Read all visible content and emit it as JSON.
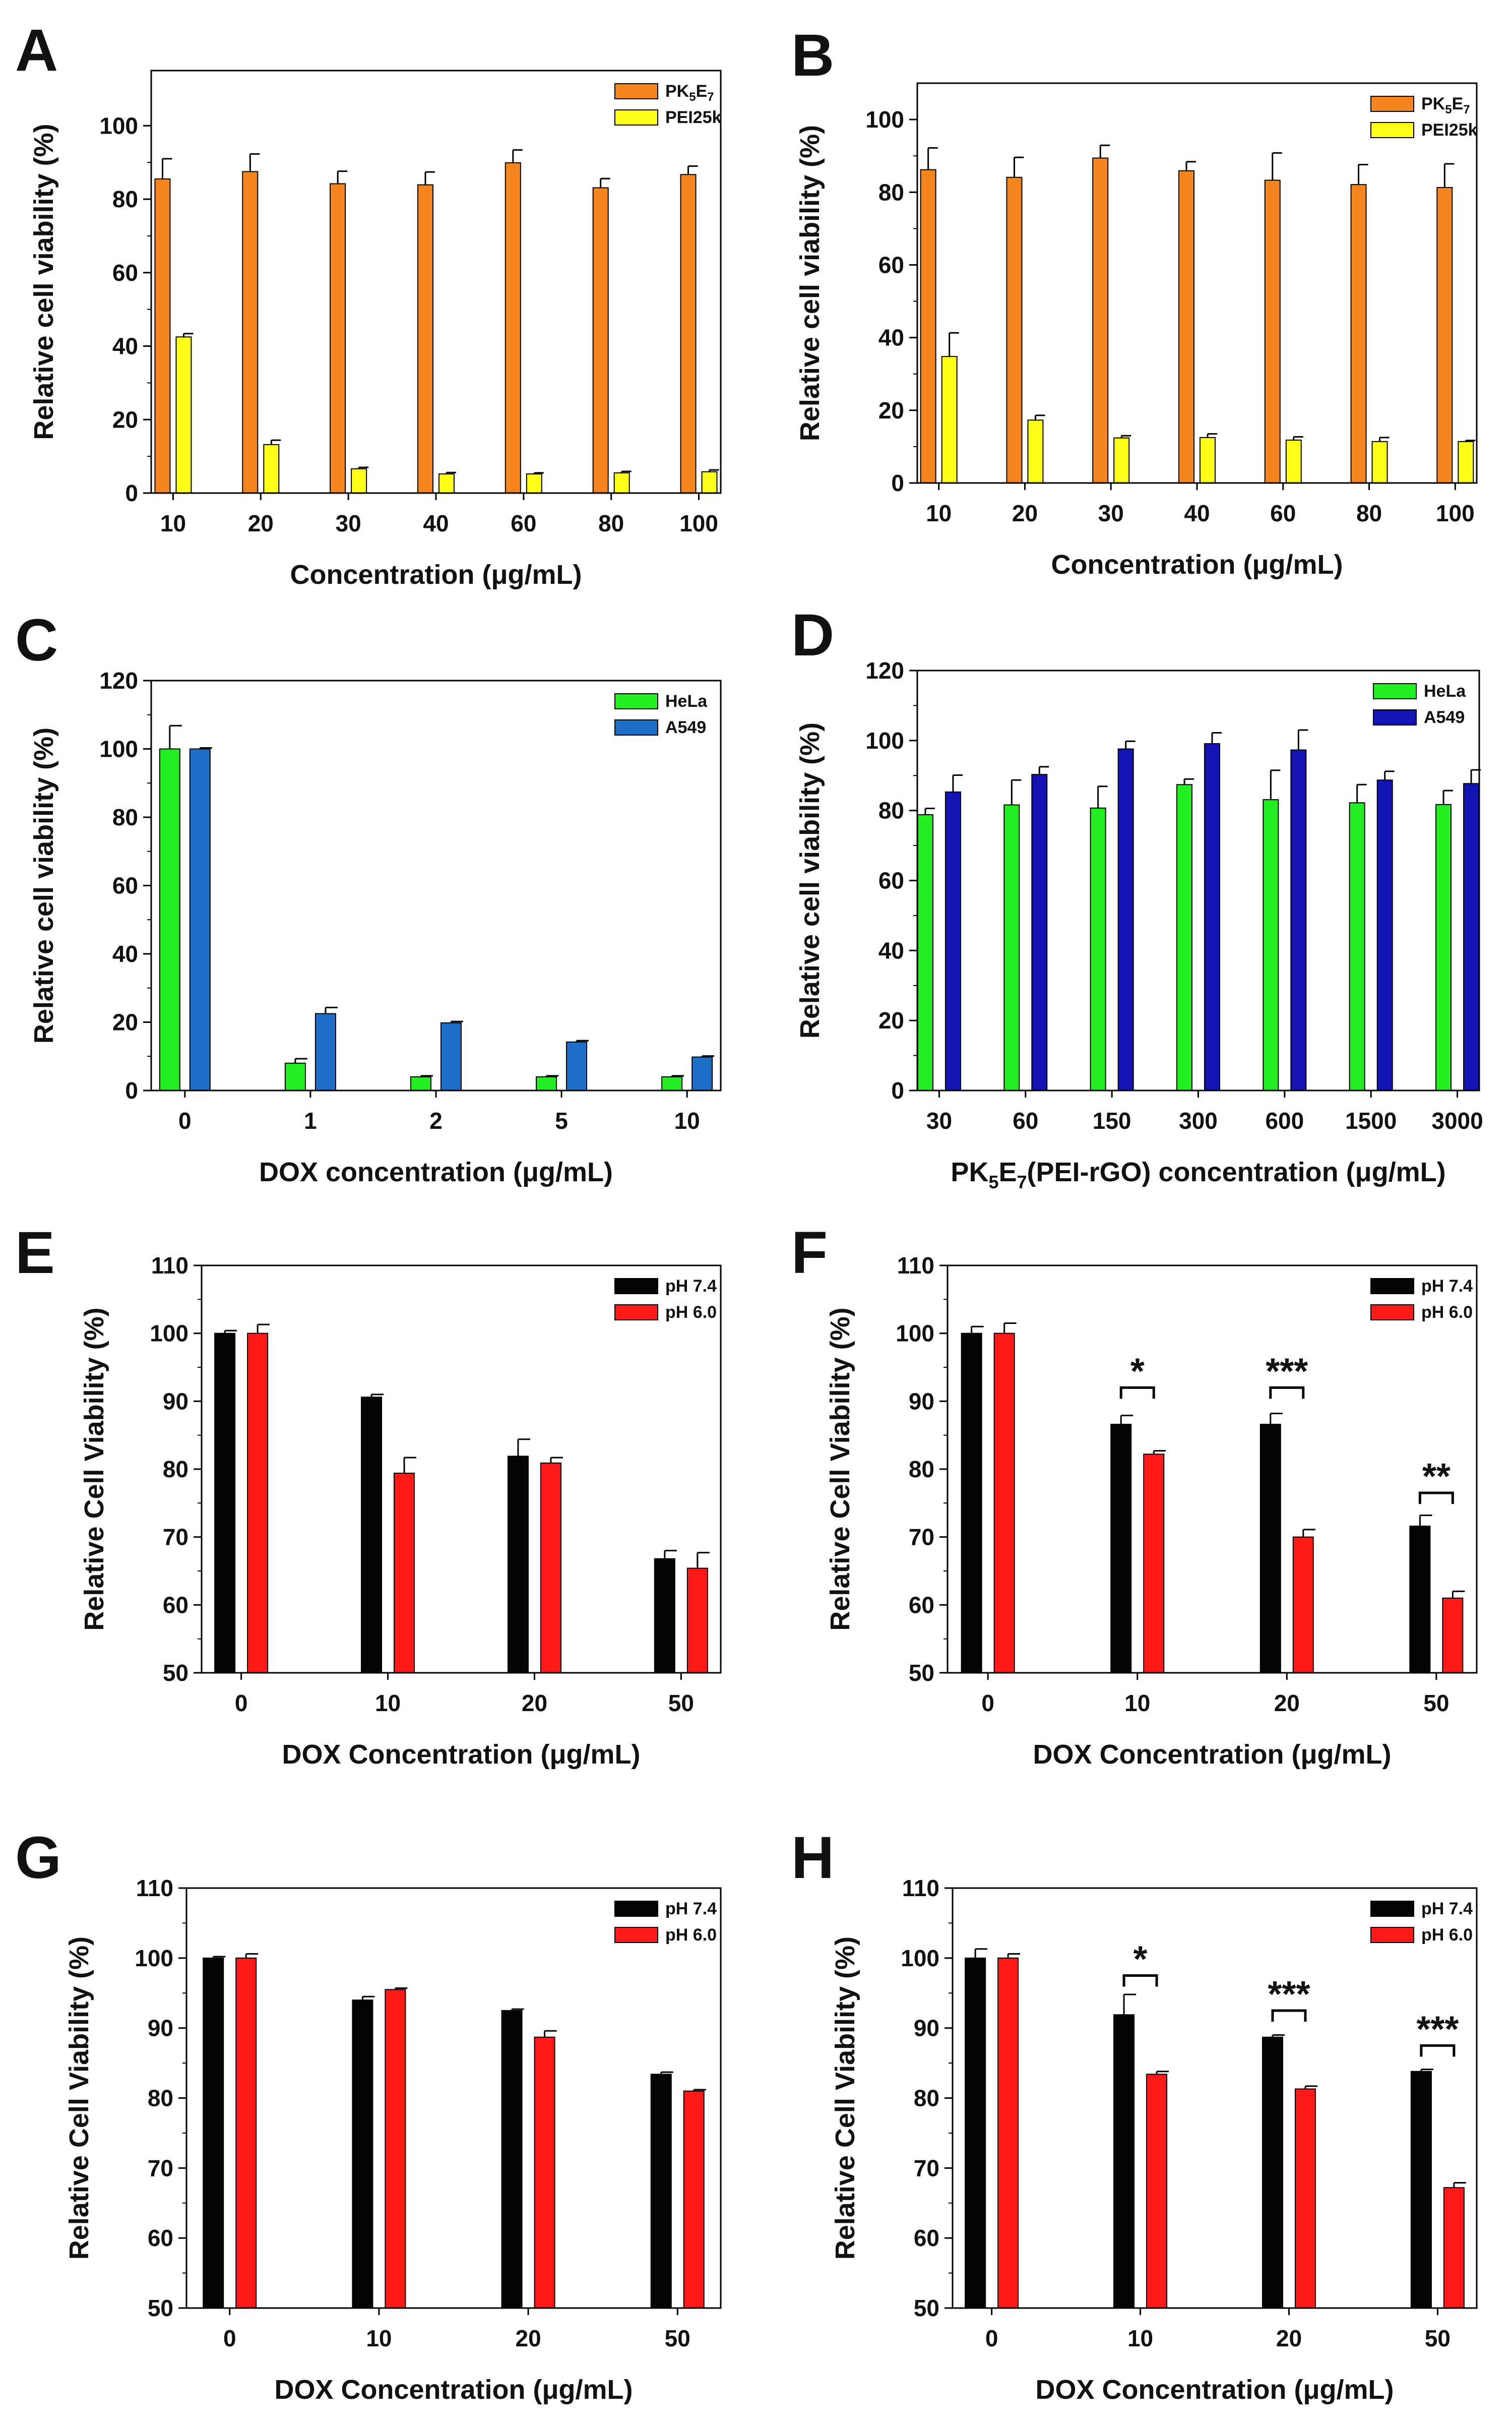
{
  "chart_data": [
    {
      "panel": "A",
      "type": "bar",
      "title": "",
      "xlabel": "Concentration (μg/mL)",
      "ylabel": "Relative cell viability (%)",
      "ylim": [
        0,
        115
      ],
      "yticks": [
        0,
        20,
        40,
        60,
        80,
        100
      ],
      "categories": [
        "10",
        "20",
        "30",
        "40",
        "60",
        "80",
        "100"
      ],
      "legend_position": "top-right",
      "series": [
        {
          "name": "PK5E7",
          "label_main": "PK",
          "label_sub1": "5",
          "label_mid": "E",
          "label_sub2": "7",
          "color": "#f5861f",
          "values": [
            85.5,
            87.5,
            84.2,
            83.9,
            89.9,
            83.1,
            86.7
          ],
          "errors": [
            5.5,
            4.8,
            3.4,
            3.5,
            3.5,
            2.5,
            2.3
          ]
        },
        {
          "name": "PEI25k",
          "color": "#ffff1a",
          "values": [
            42.5,
            13.2,
            6.6,
            5.2,
            5.2,
            5.5,
            5.8
          ],
          "errors": [
            0.9,
            1.2,
            0.4,
            0.4,
            0.3,
            0.4,
            0.5
          ]
        }
      ]
    },
    {
      "panel": "B",
      "type": "bar",
      "title": "",
      "xlabel": "Concentration (μg/mL)",
      "ylabel": "Relative cell viability (%)",
      "ylim": [
        0,
        110
      ],
      "yticks": [
        0,
        20,
        40,
        60,
        80,
        100
      ],
      "categories": [
        "10",
        "20",
        "30",
        "40",
        "60",
        "80",
        "100"
      ],
      "legend_position": "top-right",
      "series": [
        {
          "name": "PK5E7",
          "label_main": "PK",
          "label_sub1": "5",
          "label_mid": "E",
          "label_sub2": "7",
          "color": "#f5861f",
          "values": [
            86.2,
            84.1,
            89.4,
            85.9,
            83.3,
            82.1,
            81.3
          ],
          "errors": [
            6.0,
            5.5,
            3.5,
            2.5,
            7.5,
            5.5,
            6.5
          ]
        },
        {
          "name": "PEI25k",
          "color": "#ffff1a",
          "values": [
            34.8,
            17.3,
            12.4,
            12.5,
            11.8,
            11.4,
            11.4
          ],
          "errors": [
            6.5,
            1.3,
            0.6,
            1.0,
            0.9,
            1.1,
            0.3
          ]
        }
      ]
    },
    {
      "panel": "C",
      "type": "bar",
      "title": "",
      "xlabel": "DOX concentration (μg/mL)",
      "ylabel": "Relative cell viability (%)",
      "ylim": [
        0,
        120
      ],
      "yticks": [
        0,
        20,
        40,
        60,
        80,
        100,
        120
      ],
      "categories": [
        "0",
        "1",
        "2",
        "5",
        "10"
      ],
      "legend_position": "top-right",
      "series": [
        {
          "name": "HeLa",
          "color": "#22ee22",
          "values": [
            100.0,
            8.0,
            4.0,
            4.0,
            4.0
          ],
          "errors": [
            6.8,
            1.3,
            0.3,
            0.3,
            0.3
          ]
        },
        {
          "name": "A549",
          "color": "#1f6fc9",
          "values": [
            100.0,
            22.5,
            19.8,
            14.2,
            9.8
          ],
          "errors": [
            0.3,
            1.8,
            0.4,
            0.4,
            0.3
          ]
        }
      ]
    },
    {
      "panel": "D",
      "type": "bar",
      "title": "",
      "xlabel": "PK5E7(PEI-rGO) concentration (μg/mL)",
      "xlabel_parts": {
        "a": "PK",
        "b": "5",
        "c": "E",
        "d": "7",
        "e": "(PEI-rGO) concentration (μg/mL)"
      },
      "ylabel": "Relative cell viability (%)",
      "ylim": [
        0,
        120
      ],
      "yticks": [
        0,
        20,
        40,
        60,
        80,
        100,
        120
      ],
      "categories": [
        "30",
        "60",
        "150",
        "300",
        "600",
        "1500",
        "3000"
      ],
      "legend_position": "top-right",
      "series": [
        {
          "name": "HeLa",
          "color": "#22ee22",
          "values": [
            78.8,
            81.6,
            80.7,
            87.4,
            83.1,
            82.2,
            81.7
          ],
          "errors": [
            1.8,
            7.1,
            6.2,
            1.6,
            8.4,
            5.2,
            4.0
          ]
        },
        {
          "name": "A549",
          "color": "#1414b4",
          "values": [
            85.3,
            90.3,
            97.6,
            99.1,
            97.3,
            88.7,
            87.7
          ],
          "errors": [
            4.8,
            2.2,
            2.2,
            3.1,
            5.7,
            2.5,
            3.9
          ]
        }
      ]
    },
    {
      "panel": "E",
      "type": "bar",
      "title": "",
      "xlabel": "DOX Concentration (μg/mL)",
      "ylabel": "Relative Cell Viability (%)",
      "ylim": [
        50,
        110
      ],
      "yticks": [
        50,
        60,
        70,
        80,
        90,
        100,
        110
      ],
      "categories": [
        "0",
        "10",
        "20",
        "50"
      ],
      "legend_position": "top-right",
      "series": [
        {
          "name": "pH 7.4",
          "color": "#050505",
          "values": [
            100.0,
            90.6,
            81.9,
            66.8
          ],
          "errors": [
            0.4,
            0.4,
            2.5,
            1.2
          ]
        },
        {
          "name": "pH 6.0",
          "color": "#ff1a1a",
          "values": [
            100.0,
            79.4,
            80.9,
            65.4
          ],
          "errors": [
            1.3,
            2.3,
            0.8,
            2.3
          ]
        }
      ],
      "annotations": []
    },
    {
      "panel": "F",
      "type": "bar",
      "title": "",
      "xlabel": "DOX Concentration (μg/mL)",
      "ylabel": "Relative Cell Viability (%)",
      "ylim": [
        50,
        110
      ],
      "yticks": [
        50,
        60,
        70,
        80,
        90,
        100,
        110
      ],
      "categories": [
        "0",
        "10",
        "20",
        "50"
      ],
      "legend_position": "top-right",
      "series": [
        {
          "name": "pH 7.4",
          "color": "#050505",
          "values": [
            100.0,
            86.6,
            86.6,
            71.6
          ],
          "errors": [
            1.0,
            1.3,
            1.6,
            1.6
          ]
        },
        {
          "name": "pH 6.0",
          "color": "#ff1a1a",
          "values": [
            100.0,
            82.2,
            70.0,
            61.0
          ],
          "errors": [
            1.5,
            0.5,
            1.1,
            1.0
          ]
        }
      ],
      "annotations": [
        {
          "category": 1,
          "text": "*",
          "y": 92.0
        },
        {
          "category": 2,
          "text": "***",
          "y": 92.0
        },
        {
          "category": 3,
          "text": "**",
          "y": 76.5
        }
      ]
    },
    {
      "panel": "G",
      "type": "bar",
      "title": "",
      "xlabel": "DOX Concentration (μg/mL)",
      "ylabel": "Relative Cell Viability (%)",
      "ylim": [
        50,
        110
      ],
      "yticks": [
        50,
        60,
        70,
        80,
        90,
        100,
        110
      ],
      "categories": [
        "0",
        "10",
        "20",
        "50"
      ],
      "legend_position": "top-right",
      "series": [
        {
          "name": "pH 7.4",
          "color": "#050505",
          "values": [
            100.0,
            94.0,
            92.5,
            83.4
          ],
          "errors": [
            0.2,
            0.5,
            0.2,
            0.3
          ]
        },
        {
          "name": "pH 6.0",
          "color": "#ff1a1a",
          "values": [
            100.0,
            95.5,
            88.7,
            81.0
          ],
          "errors": [
            0.6,
            0.2,
            0.9,
            0.2
          ]
        }
      ],
      "annotations": []
    },
    {
      "panel": "H",
      "type": "bar",
      "title": "",
      "xlabel": "DOX Concentration (μg/mL)",
      "ylabel": "Relative Cell Viability (%)",
      "ylim": [
        50,
        110
      ],
      "yticks": [
        50,
        60,
        70,
        80,
        90,
        100,
        110
      ],
      "categories": [
        "0",
        "10",
        "20",
        "50"
      ],
      "legend_position": "top-right",
      "series": [
        {
          "name": "pH 7.4",
          "color": "#050505",
          "values": [
            100.0,
            91.9,
            88.7,
            83.8
          ],
          "errors": [
            1.3,
            2.9,
            0.3,
            0.3
          ]
        },
        {
          "name": "pH 6.0",
          "color": "#ff1a1a",
          "values": [
            100.0,
            83.4,
            81.3,
            67.2
          ],
          "errors": [
            0.6,
            0.4,
            0.4,
            0.7
          ]
        }
      ],
      "annotations": [
        {
          "category": 1,
          "text": "*",
          "y": 97.5
        },
        {
          "category": 2,
          "text": "***",
          "y": 92.5
        },
        {
          "category": 3,
          "text": "***",
          "y": 87.5
        }
      ]
    }
  ]
}
